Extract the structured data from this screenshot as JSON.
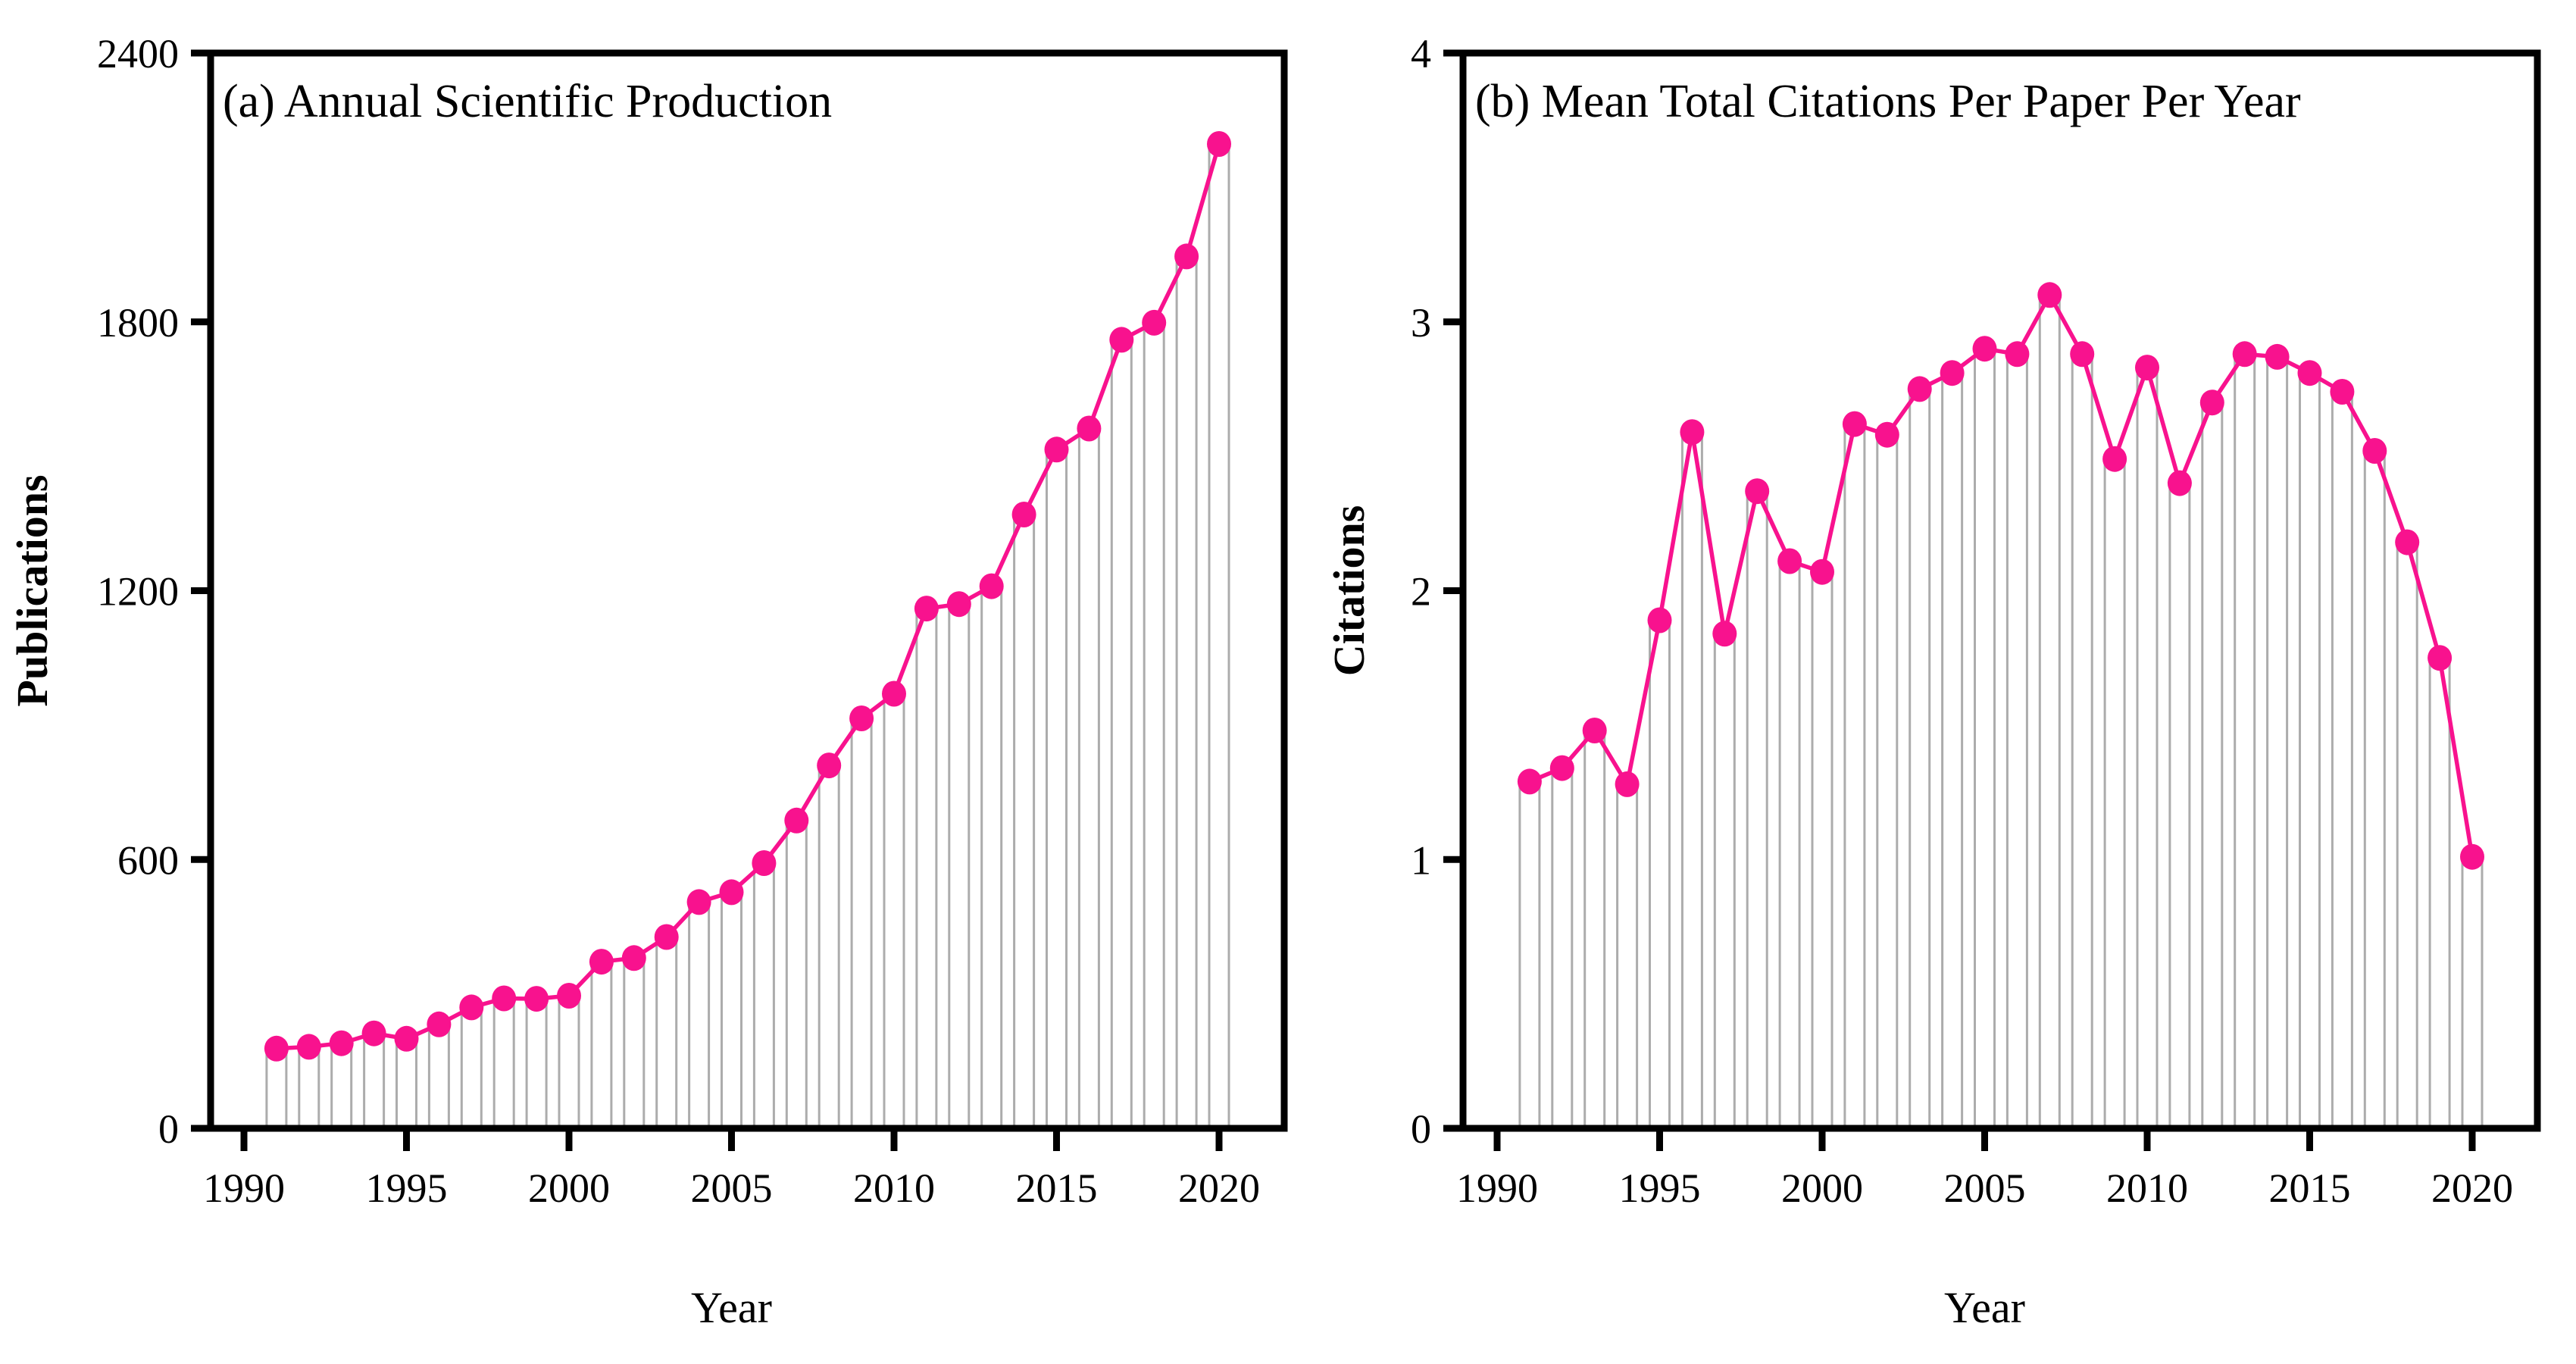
{
  "figure_title": "Bibliometric overview figure with two panels",
  "colors": {
    "accent_pink": "#F8128E",
    "stem_border": "#ACACAC",
    "stem_fill": "#FFFFFF",
    "axis_black": "#000000",
    "background": "#FFFFFF"
  },
  "chart_data": [
    {
      "type": "bar",
      "subtype": "lollipop-line-marker",
      "panel_label": "a",
      "title": "(a) Annual Scientific Production",
      "xlabel": "Year",
      "ylabel": "Publications",
      "x": [
        1991,
        1992,
        1993,
        1994,
        1995,
        1996,
        1997,
        1998,
        1999,
        2000,
        2001,
        2002,
        2003,
        2004,
        2005,
        2006,
        2007,
        2008,
        2009,
        2010,
        2011,
        2012,
        2013,
        2014,
        2015,
        2016,
        2017,
        2018,
        2019,
        2020
      ],
      "values": [
        178,
        182,
        190,
        212,
        200,
        232,
        270,
        290,
        289,
        296,
        372,
        380,
        427,
        505,
        527,
        592,
        687,
        810,
        915,
        970,
        1160,
        1170,
        1210,
        1370,
        1515,
        1562,
        1760,
        1798,
        1946,
        2197
      ],
      "ylim": [
        0,
        2400
      ],
      "yticks": [
        0,
        600,
        1200,
        1800,
        2400
      ],
      "xticks": [
        1990,
        1995,
        2000,
        2005,
        2010,
        2015,
        2020
      ],
      "grid": false,
      "legend": "none"
    },
    {
      "type": "bar",
      "subtype": "lollipop-line-marker",
      "panel_label": "b",
      "title": "(b) Mean Total Citations Per Paper Per Year",
      "xlabel": "Year",
      "ylabel": "Citations",
      "x": [
        1991,
        1992,
        1993,
        1994,
        1995,
        1996,
        1997,
        1998,
        1999,
        2000,
        2001,
        2002,
        2003,
        2004,
        2005,
        2006,
        2007,
        2008,
        2009,
        2010,
        2011,
        2012,
        2013,
        2014,
        2015,
        2016,
        2017,
        2018,
        2019,
        2020
      ],
      "values": [
        1.29,
        1.34,
        1.48,
        1.28,
        1.89,
        2.59,
        1.84,
        2.37,
        2.11,
        2.07,
        2.62,
        2.58,
        2.75,
        2.81,
        2.9,
        2.88,
        3.1,
        2.88,
        2.49,
        2.83,
        2.4,
        2.7,
        2.88,
        2.87,
        2.81,
        2.74,
        2.52,
        2.18,
        1.75,
        1.01
      ],
      "ylim": [
        0,
        4
      ],
      "yticks": [
        0,
        1,
        2,
        3,
        4
      ],
      "xticks": [
        1990,
        1995,
        2000,
        2005,
        2010,
        2015,
        2020
      ],
      "grid": false,
      "legend": "none"
    }
  ]
}
